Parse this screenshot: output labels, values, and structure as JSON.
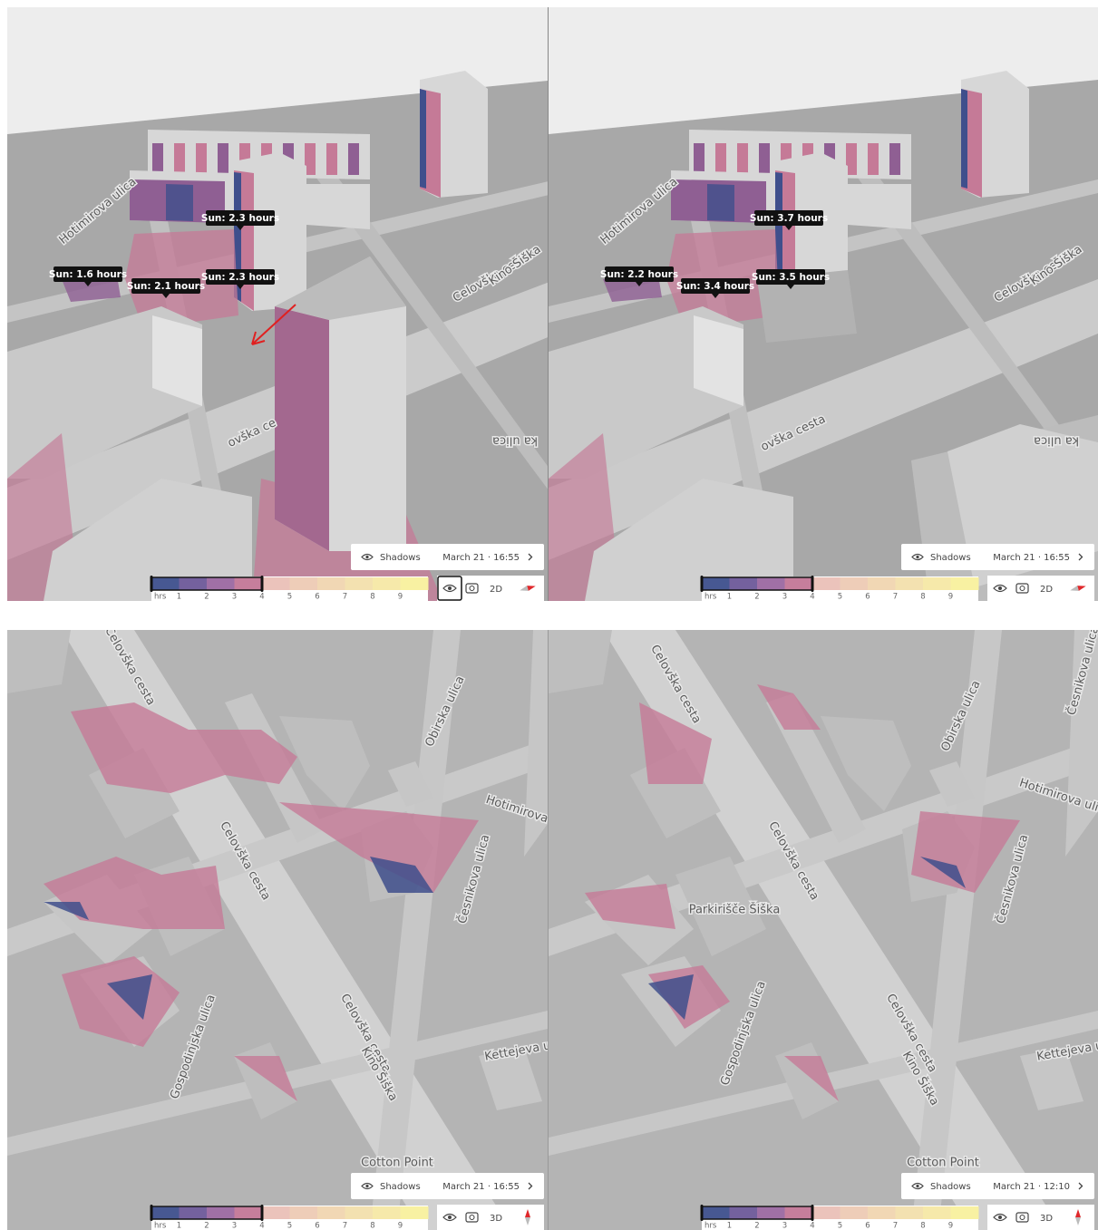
{
  "legend": {
    "unit": "hrs",
    "ticks": [
      1,
      2,
      3,
      4,
      5,
      6,
      7,
      8,
      9
    ],
    "colors": [
      "#475892",
      "#74619e",
      "#a070a6",
      "#c67e9c",
      "#ebc3bb",
      "#eecdb8",
      "#f1d7b4",
      "#f3e1b0",
      "#f6e9aa",
      "#f8f1a2"
    ]
  },
  "panels": [
    {
      "labels": [
        "Sun: 1.6 hours",
        "Sun: 2.1 hours",
        "Sun: 2.3 hours",
        "Sun: 2.3 hours"
      ],
      "streets": [
        "Hotimirova ulica",
        "Celovška cesta",
        "Kino Šiška",
        "ovška ce",
        "ka ulica"
      ],
      "layer": "Shadows",
      "datetime": "March 21 · 16:55",
      "mode": "2D"
    },
    {
      "labels": [
        "Sun: 2.2 hours",
        "Sun: 3.4 hours",
        "Sun: 3.7 hours",
        "Sun: 3.5 hours"
      ],
      "streets": [
        "Hotimirova ulica",
        "Celovška cesta",
        "Kino Šiška",
        "ovška cesta",
        "ka ulica"
      ],
      "layer": "Shadows",
      "datetime": "March 21 · 16:55",
      "mode": "2D"
    },
    {
      "labels": [],
      "streets": [
        "Celovška cesta",
        "Celovška cesta",
        "Celovška cesta",
        "Kino Šiška",
        "Obirska ulica",
        "Hotimirova u",
        "Česnikova ulica",
        "Gospodinjska ulica",
        "Kettejeva u",
        "Cotton Point"
      ],
      "layer": "Shadows",
      "datetime": "March 21 · 16:55",
      "mode": "3D"
    },
    {
      "labels": [],
      "streets": [
        "Celovška cesta",
        "Celovška cesta",
        "Celovška cesta",
        "Kino Šiška",
        "Obirska ulica",
        "Hotimirova ulica",
        "Česnikova ulica",
        "Gospodinjska ulica",
        "Kettejeva u",
        "Cotton Point",
        "Parkirišče Šiška",
        "Česnikova ulica"
      ],
      "layer": "Shadows",
      "datetime": "March 21 · 12:10",
      "mode": "3D"
    }
  ]
}
